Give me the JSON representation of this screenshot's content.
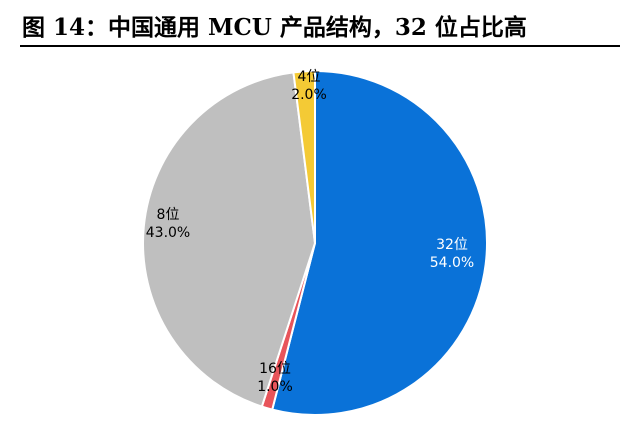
{
  "title": "图 14：中国通用 MCU 产品结构，32 位占比高",
  "chart_data": {
    "type": "pie",
    "start_angle_deg": 0,
    "direction": "clockwise",
    "slices": [
      {
        "name": "32位",
        "value": 54.0,
        "label": "54.0%",
        "color": "#0a72d8",
        "text_color": "#ffffff"
      },
      {
        "name": "16位",
        "value": 1.0,
        "label": "1.0%",
        "color": "#e8545a",
        "text_color": "#000000"
      },
      {
        "name": "8位",
        "value": 43.0,
        "label": "43.0%",
        "color": "#bfbfbf",
        "text_color": "#000000"
      },
      {
        "name": "4位",
        "value": 2.0,
        "label": "2.0%",
        "color": "#f4ca35",
        "text_color": "#000000"
      }
    ]
  }
}
